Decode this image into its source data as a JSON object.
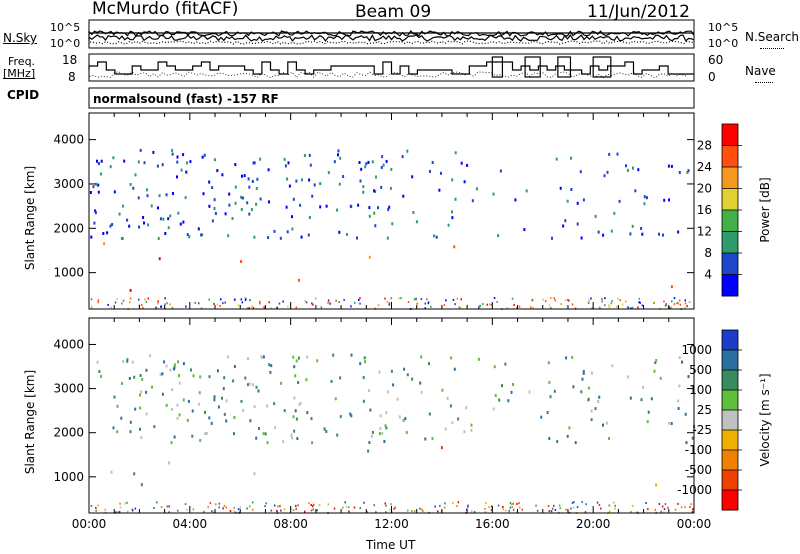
{
  "header": {
    "station": "McMurdo (fitACF)",
    "beam": "Beam 09",
    "date": "11/Jun/2012"
  },
  "top_panel": {
    "left_label": "N.Sky",
    "left_ticks": [
      "10^5",
      "10^0"
    ],
    "right_ticks": [
      "10^5",
      "10^0"
    ],
    "right_label": "N.Search"
  },
  "freq_panel": {
    "left_label_1": "Freq.",
    "left_label_2": "[MHz]",
    "left_ticks": [
      "18",
      "8"
    ],
    "right_ticks": [
      "60",
      "0"
    ],
    "right_label": "Nave"
  },
  "cpid": {
    "label": "CPID",
    "text": "normalsound (fast) -157 RF"
  },
  "chart_data": [
    {
      "type": "heatmap",
      "name": "power-panel",
      "ylabel": "Slant Range [km]",
      "xlabel": "",
      "xlim": [
        0,
        24
      ],
      "ylim": [
        180,
        4600
      ],
      "y_ticks": [
        "1000",
        "2000",
        "3000",
        "4000"
      ],
      "x_ticks": [
        "00:00",
        "04:00",
        "08:00",
        "12:00",
        "16:00",
        "20:00",
        "00:00"
      ],
      "colorbar": {
        "label": "Power [dB]",
        "ticks": [
          "4",
          "8",
          "12",
          "16",
          "20",
          "24",
          "28"
        ],
        "range": [
          0,
          30
        ],
        "colors": [
          "#0000ff",
          "#1e46c8",
          "#2f9a6a",
          "#43b04a",
          "#e0d030",
          "#f59a20",
          "#ff5010",
          "#ff0000"
        ]
      }
    },
    {
      "type": "heatmap",
      "name": "velocity-panel",
      "ylabel": "Slant Range [km]",
      "xlabel": "Time UT",
      "xlim": [
        0,
        24
      ],
      "ylim": [
        180,
        4600
      ],
      "y_ticks": [
        "1000",
        "2000",
        "3000",
        "4000"
      ],
      "x_ticks": [
        "00:00",
        "04:00",
        "08:00",
        "12:00",
        "16:00",
        "20:00",
        "00:00"
      ],
      "colorbar": {
        "label": "Velocity [m s⁻¹]",
        "ticks": [
          "1000",
          "500",
          "100",
          "25",
          "-25",
          "-100",
          "-500",
          "-1000"
        ],
        "colors": [
          "#1e3cc8",
          "#2a70a0",
          "#3a8a60",
          "#5fbf3a",
          "#c0c0c0",
          "#f0b000",
          "#f08000",
          "#f04000",
          "#ff0000"
        ]
      }
    }
  ],
  "colors": {
    "power_scale": [
      "#0000ff",
      "#1e46c8",
      "#2f9a6a",
      "#43b04a",
      "#e0d030",
      "#f59a20",
      "#ff5010",
      "#ff0000"
    ],
    "velocity_scale": [
      "#1e3cc8",
      "#2a70a0",
      "#3a8a60",
      "#5fbf3a",
      "#c0c0c0",
      "#f0b000",
      "#f08000",
      "#f04000",
      "#ff0000"
    ]
  }
}
